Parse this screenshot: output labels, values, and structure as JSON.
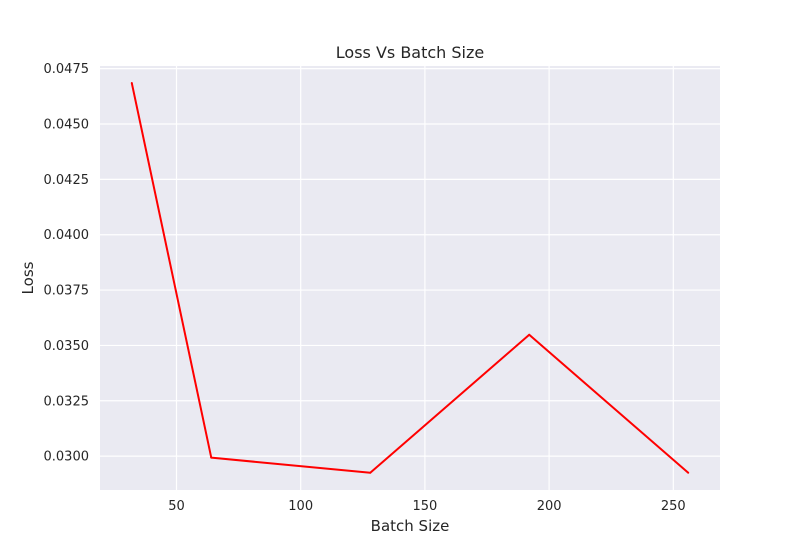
{
  "chart_data": {
    "type": "line",
    "title": "Loss Vs Batch Size",
    "xlabel": "Batch Size",
    "ylabel": "Loss",
    "xlim": [
      19.2,
      268.8
    ],
    "ylim": [
      0.02847,
      0.04762
    ],
    "xticks": [
      50,
      100,
      150,
      200,
      250
    ],
    "yticks": [
      0.03,
      0.0325,
      0.035,
      0.0375,
      0.04,
      0.0425,
      0.045,
      0.0475
    ],
    "yticks_labels": [
      "0.0300",
      "0.0325",
      "0.0350",
      "0.0375",
      "0.0400",
      "0.0425",
      "0.0450",
      "0.0475"
    ],
    "xticks_labels": [
      "50",
      "100",
      "150",
      "200",
      "250"
    ],
    "grid": true,
    "series": [
      {
        "color": "#ff0000",
        "x": [
          32,
          64,
          128,
          192,
          256
        ],
        "y": [
          0.04685,
          0.02993,
          0.02925,
          0.03548,
          0.02925
        ]
      }
    ]
  }
}
